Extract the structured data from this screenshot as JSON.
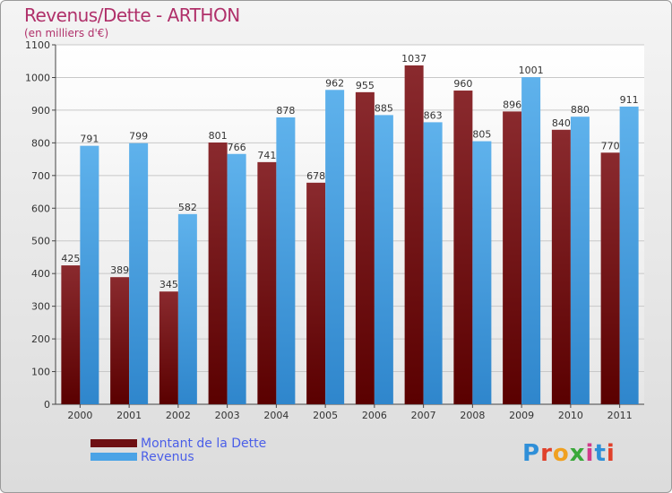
{
  "header": {
    "title": "Revenus/Dette - ARTHON",
    "subtitle": "(en milliers d'€)"
  },
  "legend": {
    "items": [
      {
        "label": "Montant de la Dette",
        "color": "#6e0f12"
      },
      {
        "label": "Revenus",
        "color": "#4aa3e6"
      }
    ]
  },
  "logo": {
    "text": "Proxiti",
    "letter_colors": [
      "#2f8fd8",
      "#e0402a",
      "#f0a020",
      "#3aa83a",
      "#d23a8a",
      "#2f8fd8",
      "#e0402a"
    ]
  },
  "chart_data": {
    "type": "bar",
    "categories": [
      "2000",
      "2001",
      "2002",
      "2003",
      "2004",
      "2005",
      "2006",
      "2007",
      "2008",
      "2009",
      "2010",
      "2011"
    ],
    "series": [
      {
        "name": "Montant de la Dette",
        "values": [
          425,
          389,
          345,
          801,
          741,
          678,
          955,
          1037,
          960,
          896,
          840,
          770
        ],
        "color": "#7a1a1c"
      },
      {
        "name": "Revenus",
        "values": [
          791,
          799,
          582,
          766,
          878,
          962,
          885,
          863,
          805,
          1001,
          880,
          911
        ],
        "color": "#4aa3e6"
      }
    ],
    "ylim": [
      0,
      1100
    ],
    "yticks": [
      0,
      100,
      200,
      300,
      400,
      500,
      600,
      700,
      800,
      900,
      1000,
      1100
    ],
    "grid": true
  }
}
